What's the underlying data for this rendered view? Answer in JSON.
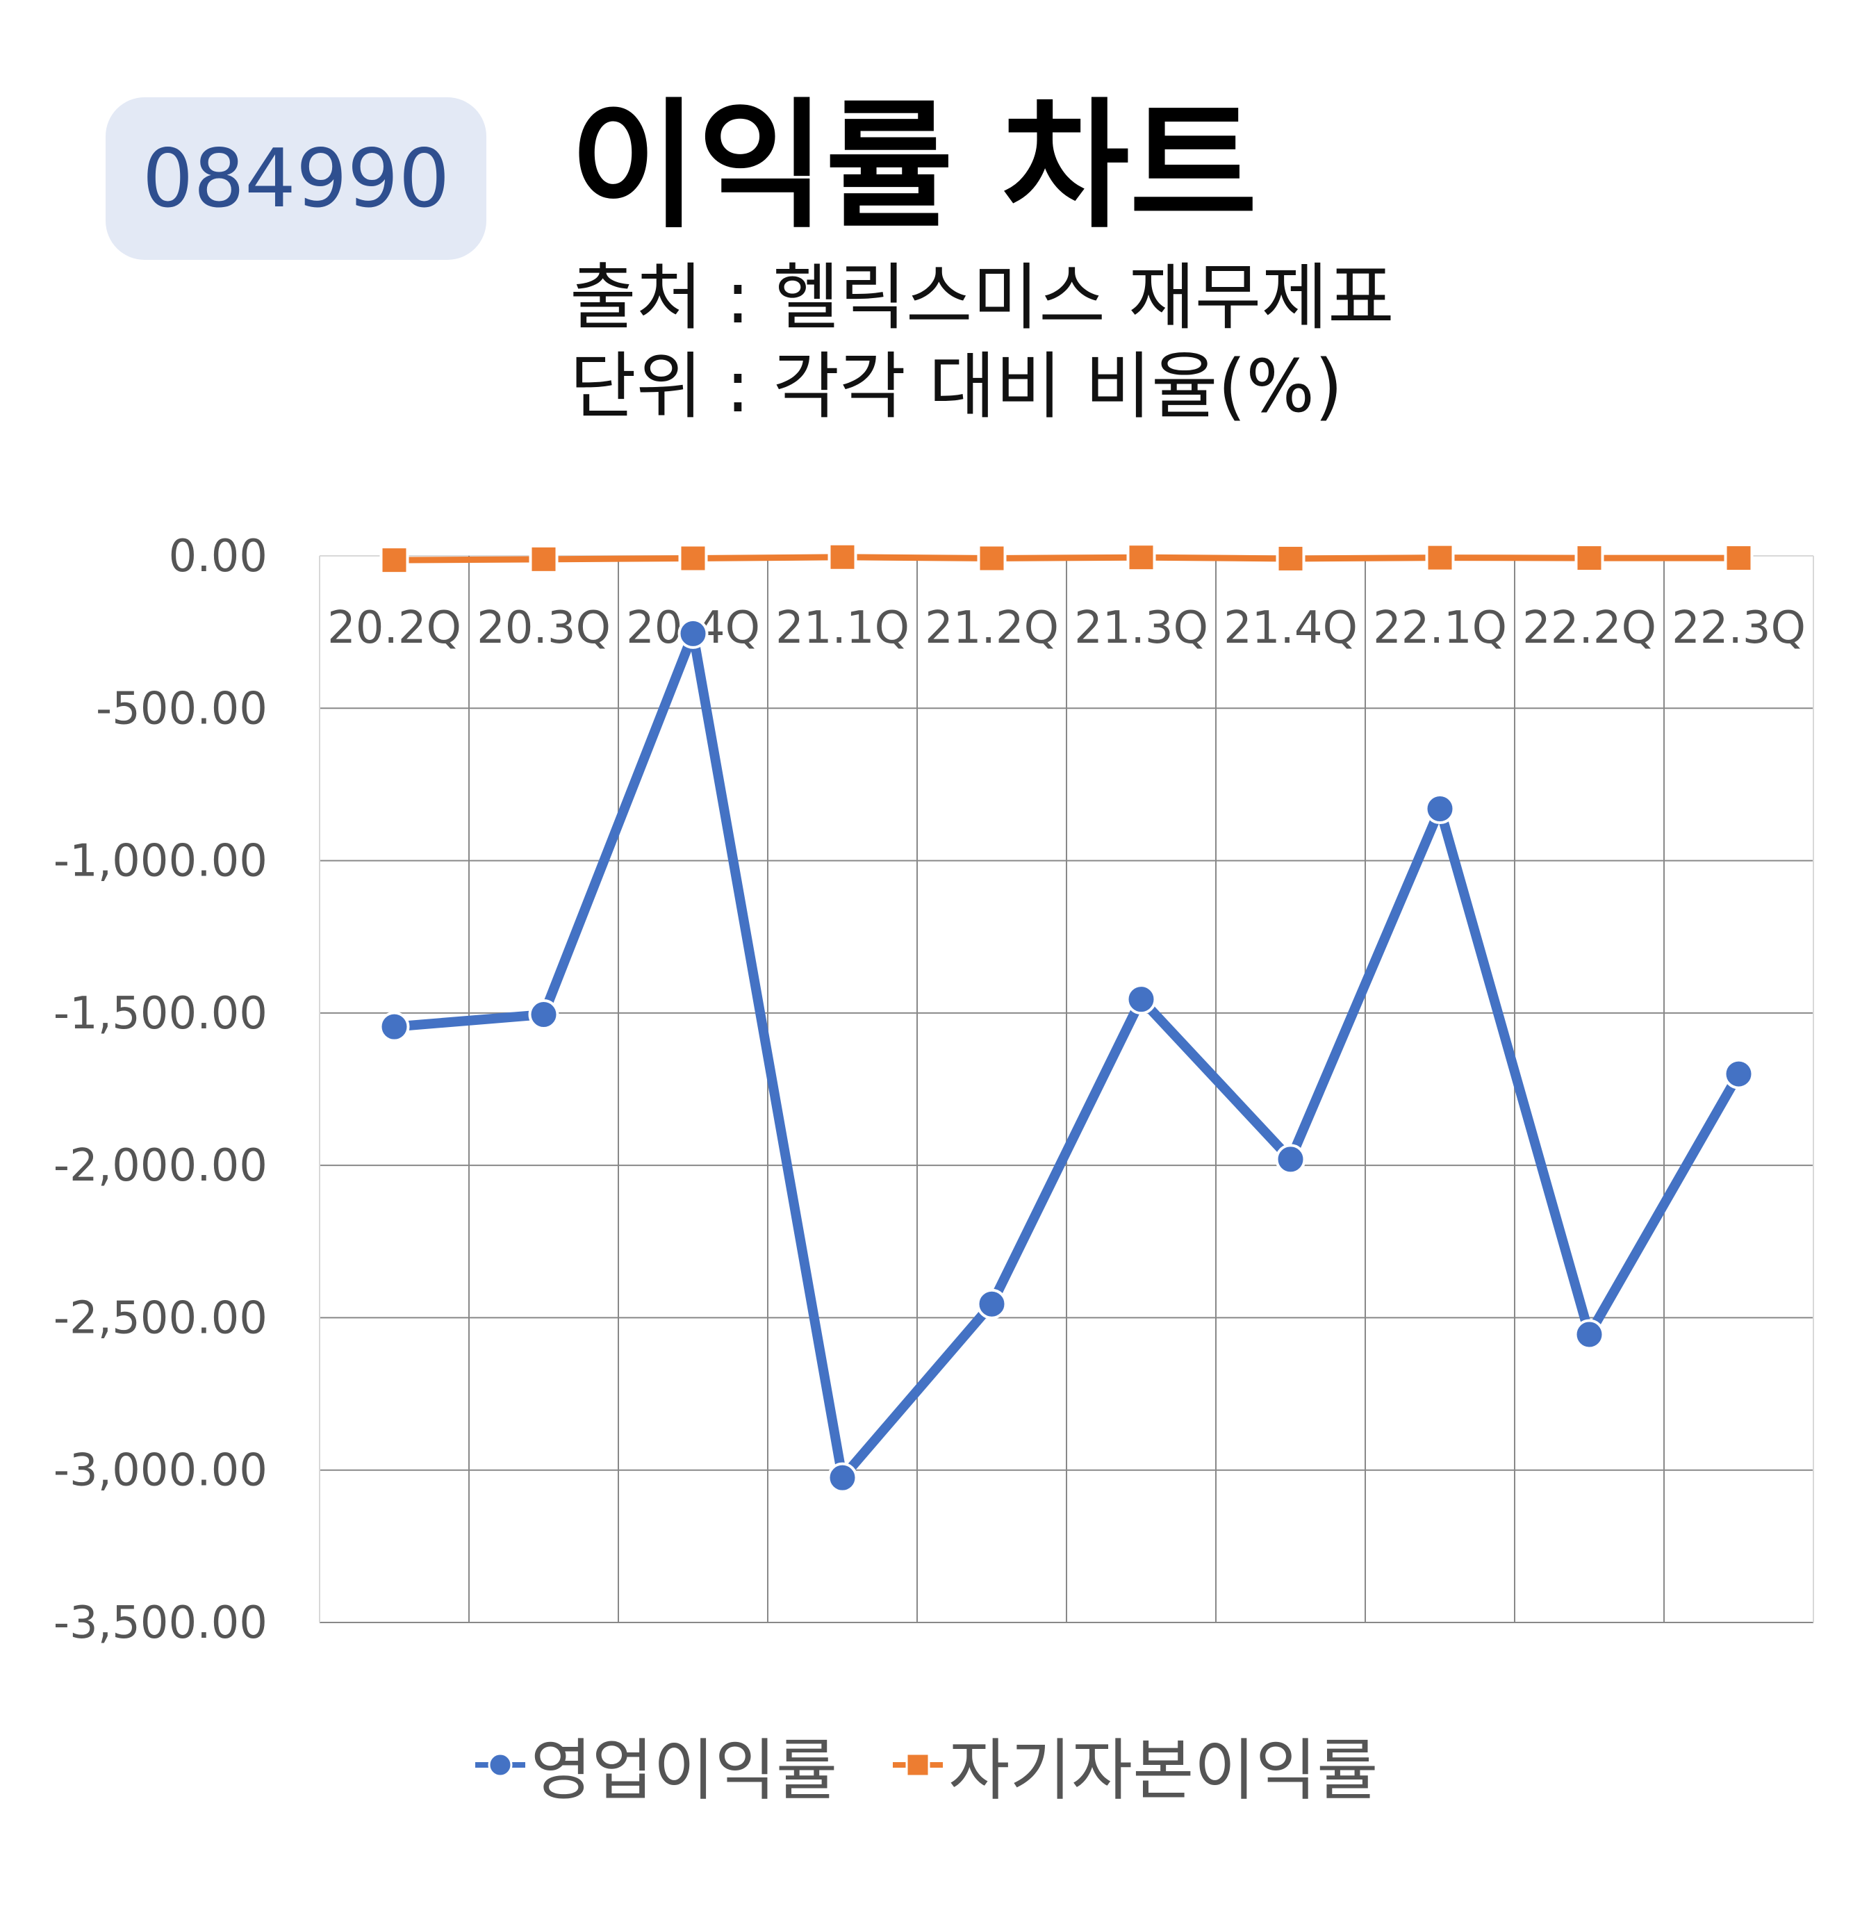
{
  "header": {
    "code": "084990",
    "title": "이익률 차트",
    "source": "출처 : 헬릭스미스 재무제표",
    "unit": "단위 : 각각 대비 비율(%)"
  },
  "colors": {
    "operating": "#4472c4",
    "equity": "#ed7d31",
    "grid": "#888888",
    "axis_text": "#555555"
  },
  "chart_data": {
    "type": "line",
    "categories": [
      "20.2Q",
      "20.3Q",
      "20.4Q",
      "21.1Q",
      "21.2Q",
      "21.3Q",
      "21.4Q",
      "22.1Q",
      "22.2Q",
      "22.3Q"
    ],
    "series": [
      {
        "name": "영업이익률",
        "values": [
          -1545,
          -1505,
          -255,
          -3025,
          -2455,
          -1455,
          -1980,
          -830,
          -2555,
          -1700
        ]
      },
      {
        "name": "자기자본이익률",
        "values": [
          -14,
          -11,
          -8,
          -4,
          -8,
          -5,
          -9,
          -6,
          -7,
          -7
        ]
      }
    ],
    "yticks": [
      "0.00",
      "-500.00",
      "-1,000.00",
      "-1,500.00",
      "-2,000.00",
      "-2,500.00",
      "-3,000.00",
      "-3,500.00"
    ],
    "ylim": [
      -3500,
      0
    ],
    "grid": true,
    "legend": "bottom"
  }
}
